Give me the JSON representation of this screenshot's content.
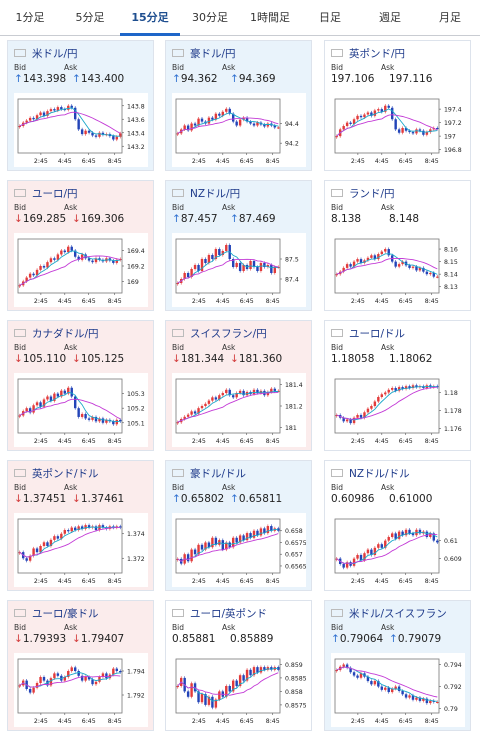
{
  "tabs": [
    "1分足",
    "5分足",
    "15分足",
    "30分足",
    "1時間足",
    "日足",
    "週足",
    "月足"
  ],
  "active_tab": 2,
  "labels": {
    "bid": "Bid",
    "ask": "Ask"
  },
  "x_ticks": [
    "2:45",
    "4:45",
    "6:45",
    "8:45"
  ],
  "colors": {
    "up_bg": "#e9f3fb",
    "down_bg": "#fbecec",
    "ma1": "#1aa7c9",
    "ma2": "#c33bd6",
    "candle_up": "#e23b3b",
    "candle_down": "#2344b8"
  },
  "cards": [
    {
      "title": "米ドル/円",
      "flag": "flag-us",
      "dir": "up",
      "bid": "143.398",
      "ask": "143.400",
      "arrow": "↑",
      "chart_data": {
        "type": "candlestick",
        "ylim": [
          143.1,
          143.9
        ],
        "yticks": [
          "143.8",
          "143.6",
          "143.4",
          "143.2"
        ],
        "ytick_values": [
          143.8,
          143.6,
          143.4,
          143.2
        ],
        "closes": [
          143.5,
          143.55,
          143.58,
          143.62,
          143.6,
          143.66,
          143.7,
          143.65,
          143.72,
          143.75,
          143.73,
          143.78,
          143.75,
          143.74,
          143.8,
          143.77,
          143.6,
          143.45,
          143.38,
          143.43,
          143.4,
          143.36,
          143.34,
          143.4,
          143.37,
          143.38,
          143.35,
          143.3,
          143.34,
          143.39
        ]
      }
    },
    {
      "title": "豪ドル/円",
      "flag": "flag-au",
      "dir": "up",
      "bid": "94.362",
      "ask": "94.369",
      "arrow": "↑",
      "chart_data": {
        "type": "candlestick",
        "ylim": [
          94.1,
          94.65
        ],
        "yticks": [
          "94.4",
          "94.2"
        ],
        "ytick_values": [
          94.4,
          94.2
        ],
        "closes": [
          94.3,
          94.34,
          94.38,
          94.33,
          94.4,
          94.38,
          94.45,
          94.42,
          94.4,
          94.46,
          94.44,
          94.5,
          94.48,
          94.52,
          94.55,
          94.5,
          94.42,
          94.38,
          94.44,
          94.46,
          94.42,
          94.4,
          94.38,
          94.41,
          94.39,
          94.37,
          94.4,
          94.38,
          94.36,
          94.36
        ]
      }
    },
    {
      "title": "英ポンド/円",
      "flag": "flag-gb",
      "dir": "none",
      "bid": "197.106",
      "ask": "197.116",
      "arrow": "",
      "chart_data": {
        "type": "candlestick",
        "ylim": [
          196.75,
          197.55
        ],
        "yticks": [
          "197.4",
          "197.2",
          "197",
          "196.8"
        ],
        "ytick_values": [
          197.4,
          197.2,
          197.0,
          196.8
        ],
        "closes": [
          197.0,
          197.1,
          197.15,
          197.2,
          197.18,
          197.25,
          197.3,
          197.28,
          197.32,
          197.35,
          197.3,
          197.38,
          197.4,
          197.36,
          197.45,
          197.42,
          197.25,
          197.1,
          197.05,
          197.12,
          197.08,
          197.06,
          197.04,
          197.1,
          197.08,
          197.02,
          197.06,
          197.1,
          197.12,
          197.11
        ]
      }
    },
    {
      "title": "ユーロ/円",
      "flag": "flag-eu",
      "dir": "down",
      "bid": "169.285",
      "ask": "169.306",
      "arrow": "↓",
      "chart_data": {
        "type": "candlestick",
        "ylim": [
          168.85,
          169.55
        ],
        "yticks": [
          "169.4",
          "169.2",
          "169"
        ],
        "ytick_values": [
          169.4,
          169.2,
          169.0
        ],
        "closes": [
          168.95,
          169.0,
          169.05,
          169.1,
          169.08,
          169.15,
          169.2,
          169.18,
          169.25,
          169.3,
          169.28,
          169.35,
          169.4,
          169.38,
          169.45,
          169.4,
          169.32,
          169.28,
          169.35,
          169.3,
          169.27,
          169.25,
          169.3,
          169.28,
          169.26,
          169.3,
          169.27,
          169.24,
          169.28,
          169.29
        ]
      }
    },
    {
      "title": "NZドル/円",
      "flag": "flag-nz",
      "dir": "up",
      "bid": "87.457",
      "ask": "87.469",
      "arrow": "↑",
      "chart_data": {
        "type": "candlestick",
        "ylim": [
          87.33,
          87.6
        ],
        "yticks": [
          "87.5",
          "87.4"
        ],
        "ytick_values": [
          87.5,
          87.4
        ],
        "closes": [
          87.38,
          87.4,
          87.43,
          87.41,
          87.45,
          87.47,
          87.44,
          87.5,
          87.48,
          87.52,
          87.5,
          87.55,
          87.52,
          87.54,
          87.57,
          87.5,
          87.46,
          87.48,
          87.44,
          87.47,
          87.45,
          87.49,
          87.46,
          87.44,
          87.48,
          87.46,
          87.47,
          87.43,
          87.46,
          87.46
        ]
      }
    },
    {
      "title": "ランド/円",
      "flag": "flag-za",
      "dir": "none",
      "bid": "8.138",
      "ask": "8.148",
      "arrow": "",
      "chart_data": {
        "type": "candlestick",
        "ylim": [
          8.125,
          8.168
        ],
        "yticks": [
          "8.16",
          "8.15",
          "8.14",
          "8.13"
        ],
        "ytick_values": [
          8.16,
          8.15,
          8.14,
          8.13
        ],
        "closes": [
          8.14,
          8.142,
          8.145,
          8.148,
          8.146,
          8.15,
          8.152,
          8.149,
          8.151,
          8.153,
          8.155,
          8.152,
          8.156,
          8.158,
          8.16,
          8.155,
          8.15,
          8.146,
          8.148,
          8.15,
          8.147,
          8.145,
          8.146,
          8.143,
          8.145,
          8.142,
          8.14,
          8.141,
          8.138,
          8.138
        ]
      }
    },
    {
      "title": "カナダドル/円",
      "flag": "flag-ca",
      "dir": "down",
      "bid": "105.110",
      "ask": "105.125",
      "arrow": "↓",
      "chart_data": {
        "type": "candlestick",
        "ylim": [
          105.03,
          105.4
        ],
        "yticks": [
          "105.3",
          "105.2",
          "105.1"
        ],
        "ytick_values": [
          105.3,
          105.2,
          105.1
        ],
        "closes": [
          105.15,
          105.18,
          105.2,
          105.17,
          105.22,
          105.24,
          105.21,
          105.26,
          105.28,
          105.25,
          105.3,
          105.28,
          105.32,
          105.3,
          105.34,
          105.28,
          105.2,
          105.14,
          105.16,
          105.13,
          105.12,
          105.14,
          105.11,
          105.13,
          105.1,
          105.12,
          105.11,
          105.09,
          105.12,
          105.11
        ]
      }
    },
    {
      "title": "スイスフラン/円",
      "flag": "flag-ch",
      "dir": "down",
      "bid": "181.344",
      "ask": "181.360",
      "arrow": "↓",
      "chart_data": {
        "type": "candlestick",
        "ylim": [
          180.95,
          181.45
        ],
        "yticks": [
          "181.4",
          "181.2",
          "181"
        ],
        "ytick_values": [
          181.4,
          181.2,
          181.0
        ],
        "closes": [
          181.05,
          181.08,
          181.1,
          181.12,
          181.15,
          181.13,
          181.18,
          181.2,
          181.22,
          181.25,
          181.28,
          181.26,
          181.3,
          181.32,
          181.35,
          181.3,
          181.28,
          181.32,
          181.34,
          181.3,
          181.33,
          181.31,
          181.35,
          181.32,
          181.34,
          181.3,
          181.33,
          181.36,
          181.34,
          181.34
        ]
      }
    },
    {
      "title": "ユーロ/ドル",
      "flag": "flag-eu",
      "dir": "none",
      "bid": "1.18058",
      "ask": "1.18062",
      "arrow": "",
      "chart_data": {
        "type": "candlestick",
        "ylim": [
          1.1755,
          1.1815
        ],
        "yticks": [
          "1.18",
          "1.178",
          "1.176"
        ],
        "ytick_values": [
          1.18,
          1.178,
          1.176
        ],
        "closes": [
          1.1775,
          1.1772,
          1.1768,
          1.177,
          1.1766,
          1.1772,
          1.1775,
          1.1772,
          1.1778,
          1.1782,
          1.1785,
          1.179,
          1.1795,
          1.1798,
          1.18,
          1.1803,
          1.1805,
          1.1802,
          1.1806,
          1.1804,
          1.1807,
          1.1805,
          1.1808,
          1.1806,
          1.1807,
          1.1805,
          1.1808,
          1.1806,
          1.1807,
          1.1806
        ]
      }
    },
    {
      "title": "英ポンド/ドル",
      "flag": "flag-gb",
      "dir": "down",
      "bid": "1.37451",
      "ask": "1.37461",
      "arrow": "↓",
      "chart_data": {
        "type": "candlestick",
        "ylim": [
          1.3708,
          1.3752
        ],
        "yticks": [
          "1.374",
          "1.372"
        ],
        "ytick_values": [
          1.374,
          1.372
        ],
        "closes": [
          1.3725,
          1.372,
          1.3718,
          1.3722,
          1.3728,
          1.3725,
          1.373,
          1.3733,
          1.373,
          1.3735,
          1.3738,
          1.3736,
          1.374,
          1.3743,
          1.3742,
          1.3745,
          1.3743,
          1.3746,
          1.3744,
          1.3747,
          1.3745,
          1.3746,
          1.3743,
          1.3747,
          1.3745,
          1.3744,
          1.3746,
          1.3745,
          1.3746,
          1.3745
        ]
      }
    },
    {
      "title": "豪ドル/ドル",
      "flag": "flag-au",
      "dir": "up",
      "bid": "0.65802",
      "ask": "0.65811",
      "arrow": "↑",
      "chart_data": {
        "type": "candlestick",
        "ylim": [
          0.6562,
          0.6585
        ],
        "yticks": [
          "0.658",
          "0.6575",
          "0.657",
          "0.6565"
        ],
        "ytick_values": [
          0.658,
          0.6575,
          0.657,
          0.6565
        ],
        "closes": [
          0.6568,
          0.6566,
          0.657,
          0.6567,
          0.6572,
          0.657,
          0.6574,
          0.6572,
          0.6575,
          0.6573,
          0.6577,
          0.6574,
          0.6576,
          0.6572,
          0.6575,
          0.6573,
          0.6577,
          0.6575,
          0.6578,
          0.6576,
          0.6579,
          0.6577,
          0.658,
          0.6578,
          0.6581,
          0.6579,
          0.6582,
          0.658,
          0.6581,
          0.658
        ]
      }
    },
    {
      "title": "NZドル/ドル",
      "flag": "flag-nz",
      "dir": "none",
      "bid": "0.60986",
      "ask": "0.61000",
      "arrow": "",
      "chart_data": {
        "type": "candlestick",
        "ylim": [
          0.6082,
          0.6112
        ],
        "yticks": [
          "0.61",
          "0.609"
        ],
        "ytick_values": [
          0.61,
          0.609
        ],
        "closes": [
          0.609,
          0.6087,
          0.6085,
          0.6088,
          0.6086,
          0.609,
          0.6092,
          0.6089,
          0.6093,
          0.6095,
          0.6092,
          0.6096,
          0.6098,
          0.6096,
          0.61,
          0.6102,
          0.6104,
          0.6101,
          0.6105,
          0.6103,
          0.6106,
          0.6104,
          0.6103,
          0.6106,
          0.6104,
          0.6105,
          0.6102,
          0.6104,
          0.61,
          0.6099
        ]
      }
    },
    {
      "title": "ユーロ/豪ドル",
      "flag": "flag-eu",
      "dir": "down",
      "bid": "1.79393",
      "ask": "1.79407",
      "arrow": "↓",
      "chart_data": {
        "type": "candlestick",
        "ylim": [
          1.7905,
          1.795
        ],
        "yticks": [
          "1.794",
          "1.792"
        ],
        "ytick_values": [
          1.794,
          1.792
        ],
        "closes": [
          1.7928,
          1.7932,
          1.7925,
          1.7922,
          1.7926,
          1.793,
          1.7935,
          1.7932,
          1.7928,
          1.7934,
          1.7938,
          1.7936,
          1.7932,
          1.7935,
          1.794,
          1.7943,
          1.794,
          1.7936,
          1.7932,
          1.7935,
          1.7933,
          1.7929,
          1.7931,
          1.7935,
          1.7938,
          1.7934,
          1.7937,
          1.7942,
          1.794,
          1.7939
        ]
      }
    },
    {
      "title": "ユーロ/英ポンド",
      "flag": "flag-eu",
      "dir": "none",
      "bid": "0.85881",
      "ask": "0.85889",
      "arrow": "",
      "chart_data": {
        "type": "candlestick",
        "ylim": [
          0.8572,
          0.8592
        ],
        "yticks": [
          "0.859",
          "0.8585",
          "0.858",
          "0.8575"
        ],
        "ytick_values": [
          0.859,
          0.8585,
          0.858,
          0.8575
        ],
        "closes": [
          0.8582,
          0.8585,
          0.858,
          0.8578,
          0.8583,
          0.858,
          0.8576,
          0.8579,
          0.8575,
          0.8578,
          0.8574,
          0.8577,
          0.858,
          0.8578,
          0.8582,
          0.858,
          0.8584,
          0.8582,
          0.8586,
          0.8584,
          0.8588,
          0.8586,
          0.8589,
          0.8587,
          0.8589,
          0.8588,
          0.8589,
          0.8588,
          0.8589,
          0.8588
        ]
      }
    },
    {
      "title": "米ドル/スイスフラン",
      "flag": "flag-us",
      "dir": "up",
      "bid": "0.79064",
      "ask": "0.79079",
      "arrow": "↑",
      "chart_data": {
        "type": "candlestick",
        "ylim": [
          0.7896,
          0.7945
        ],
        "yticks": [
          "0.794",
          "0.792",
          "0.79"
        ],
        "ytick_values": [
          0.794,
          0.792,
          0.79
        ],
        "closes": [
          0.7935,
          0.7938,
          0.794,
          0.7937,
          0.7933,
          0.793,
          0.7928,
          0.7932,
          0.7929,
          0.7925,
          0.7922,
          0.7925,
          0.792,
          0.7917,
          0.7919,
          0.7915,
          0.7918,
          0.792,
          0.7916,
          0.7913,
          0.791,
          0.7912,
          0.7908,
          0.791,
          0.7907,
          0.7909,
          0.7905,
          0.7907,
          0.7906,
          0.7906
        ]
      }
    }
  ]
}
